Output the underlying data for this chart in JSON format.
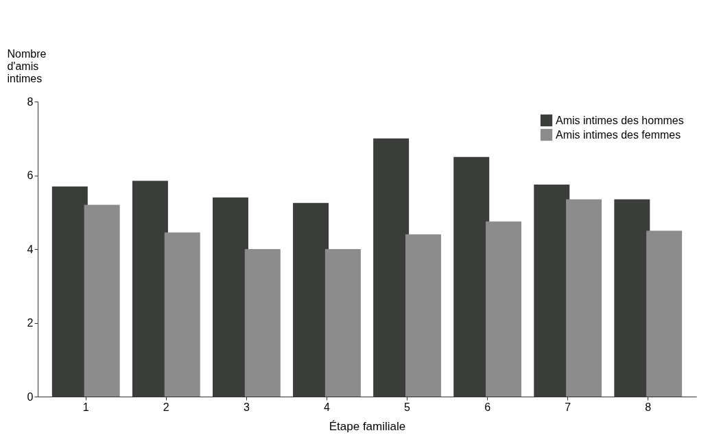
{
  "chart_data": {
    "type": "bar",
    "xlabel": "Étape familiale",
    "ylabel": "Nombre d'amis intimes",
    "categories": [
      "1",
      "2",
      "3",
      "4",
      "5",
      "6",
      "7",
      "8"
    ],
    "series": [
      {
        "name": "Amis intimes des hommes",
        "color": "#3a3d3a",
        "values": [
          5.7,
          5.85,
          5.4,
          5.25,
          7.0,
          6.5,
          5.75,
          5.35
        ]
      },
      {
        "name": "Amis intimes des femmes",
        "color": "#8c8c8c",
        "values": [
          5.2,
          4.45,
          4.0,
          4.0,
          4.4,
          4.75,
          5.35,
          4.5
        ]
      }
    ],
    "ylim": [
      0,
      8
    ],
    "yticks": [
      0,
      2,
      4,
      6,
      8
    ],
    "grid": false,
    "legend": "top right"
  }
}
